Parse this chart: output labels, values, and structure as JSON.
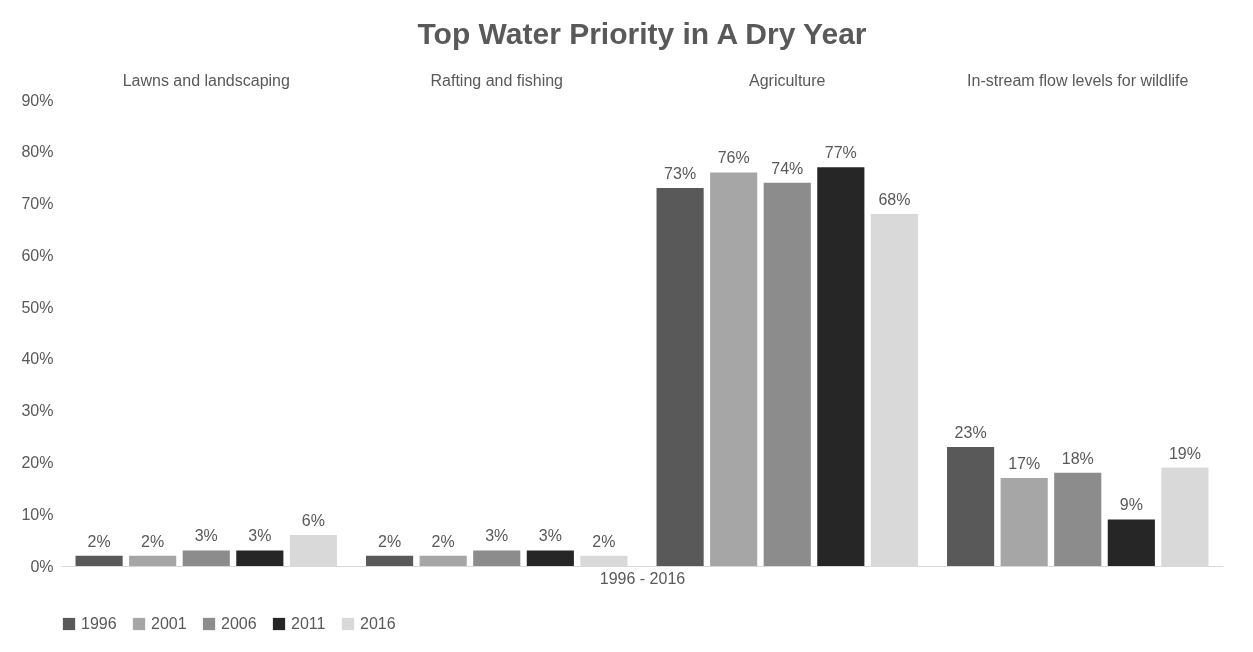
{
  "chart_data": {
    "type": "bar",
    "title": "Top Water Priority in A Dry Year",
    "xlabel": "1996 - 2016",
    "categories": [
      "Lawns and landscaping",
      "Rafting and fishing",
      "Agriculture",
      "In-stream flow levels for wildlife"
    ],
    "series": [
      {
        "name": "1996",
        "color": "#595959",
        "values": [
          2,
          2,
          73,
          23
        ],
        "value_labels": [
          "2%",
          "2%",
          "73%",
          "23%"
        ]
      },
      {
        "name": "2001",
        "color": "#a6a6a6",
        "values": [
          2,
          2,
          76,
          17
        ],
        "value_labels": [
          "2%",
          "2%",
          "76%",
          "17%"
        ]
      },
      {
        "name": "2006",
        "color": "#8c8c8c",
        "values": [
          3,
          3,
          74,
          18
        ],
        "value_labels": [
          "3%",
          "3%",
          "74%",
          "18%"
        ]
      },
      {
        "name": "2011",
        "color": "#262626",
        "values": [
          3,
          3,
          77,
          9
        ],
        "value_labels": [
          "3%",
          "3%",
          "77%",
          "9%"
        ]
      },
      {
        "name": "2016",
        "color": "#d9d9d9",
        "values": [
          6,
          2,
          68,
          19
        ],
        "value_labels": [
          "6%",
          "2%",
          "68%",
          "19%"
        ]
      }
    ],
    "ylim": [
      0,
      90
    ],
    "yticks": [
      {
        "value": 0,
        "label": "0%"
      },
      {
        "value": 10,
        "label": "10%"
      },
      {
        "value": 20,
        "label": "20%"
      },
      {
        "value": 30,
        "label": "30%"
      },
      {
        "value": 40,
        "label": "40%"
      },
      {
        "value": 50,
        "label": "50%"
      },
      {
        "value": 60,
        "label": "60%"
      },
      {
        "value": 70,
        "label": "70%"
      },
      {
        "value": 80,
        "label": "80%"
      },
      {
        "value": 90,
        "label": "90%"
      }
    ],
    "grid": false,
    "legend": "bottom"
  }
}
